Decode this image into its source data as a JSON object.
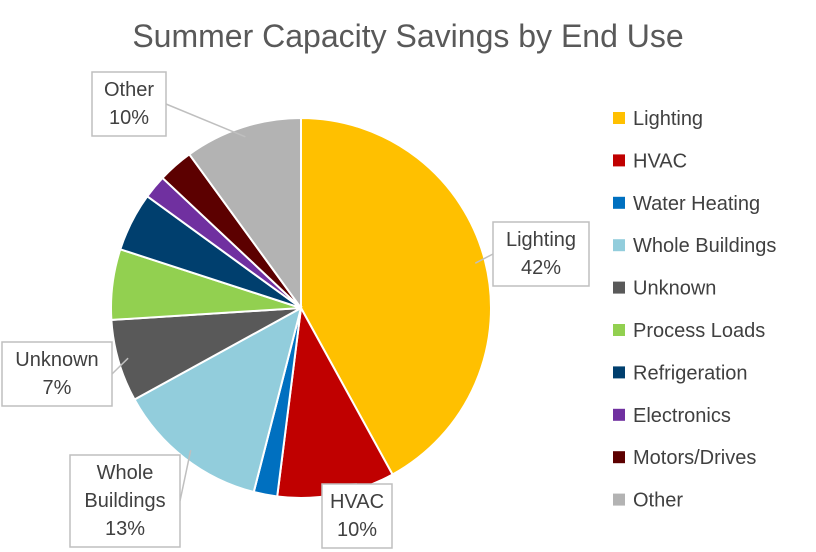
{
  "chart_data": {
    "type": "pie",
    "title": "Summer Capacity Savings by End Use",
    "legend_position": "right",
    "series": [
      {
        "name": "Lighting",
        "value": 42,
        "color": "#FFC000"
      },
      {
        "name": "HVAC",
        "value": 10,
        "color": "#C00000"
      },
      {
        "name": "Water Heating",
        "value": 2,
        "color": "#0070C0"
      },
      {
        "name": "Whole Buildings",
        "value": 13,
        "color": "#92CDDC"
      },
      {
        "name": "Unknown",
        "value": 7,
        "color": "#595959"
      },
      {
        "name": "Process Loads",
        "value": 6,
        "color": "#92D050"
      },
      {
        "name": "Refrigeration",
        "value": 5,
        "color": "#003F6E"
      },
      {
        "name": "Electronics",
        "value": 2,
        "color": "#7030A0"
      },
      {
        "name": "Motors/Drives",
        "value": 3,
        "color": "#5C0000"
      },
      {
        "name": "Other",
        "value": 10,
        "color": "#B3B3B3"
      }
    ],
    "callouts": [
      {
        "series": "Lighting",
        "lines": [
          "Lighting",
          "42%"
        ]
      },
      {
        "series": "HVAC",
        "lines": [
          "HVAC",
          "10%"
        ]
      },
      {
        "series": "Whole Buildings",
        "lines": [
          "Whole",
          "Buildings",
          "13%"
        ]
      },
      {
        "series": "Unknown",
        "lines": [
          "Unknown",
          "7%"
        ]
      },
      {
        "series": "Other",
        "lines": [
          "Other",
          "10%"
        ]
      }
    ]
  }
}
